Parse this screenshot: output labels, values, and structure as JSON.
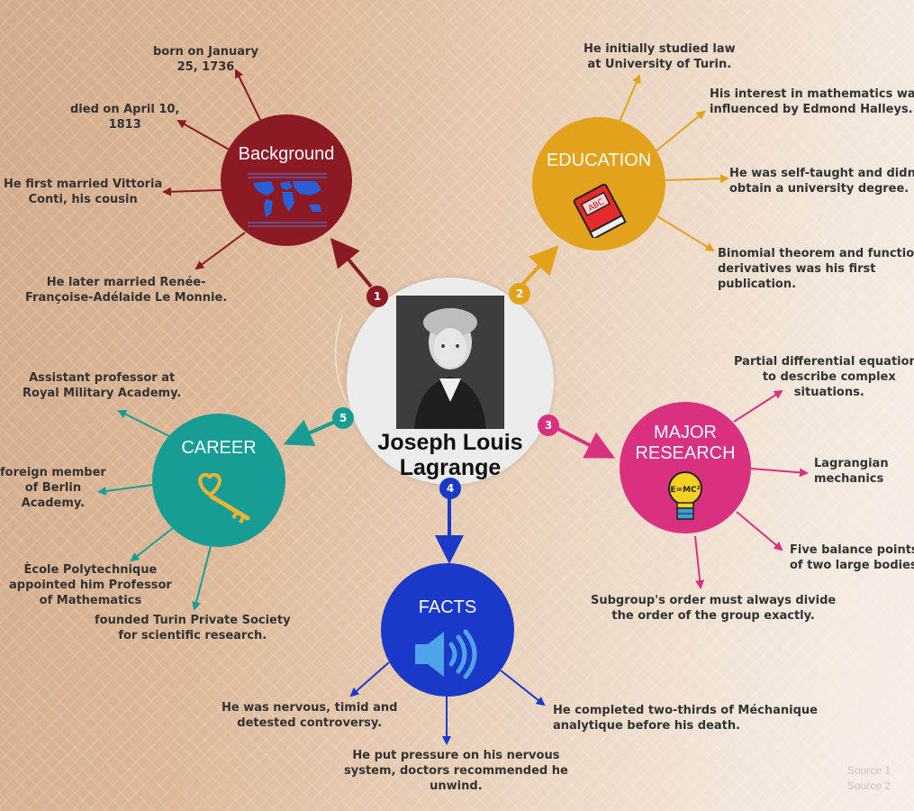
{
  "center": {
    "title_line1": "Joseph Louis",
    "title_line2": "Lagrange",
    "portrait_icon": "portrait-engraving"
  },
  "colors": {
    "background": "#b7cbb2",
    "education": "#e3a21c",
    "research": "#d9307f",
    "facts": "#1a39c8",
    "career": "#179d94"
  },
  "sections": [
    {
      "id": "background",
      "number": "1",
      "title": "Background",
      "icon": "world-map-icon",
      "items": [
        {
          "lines": [
            "born on January",
            "25, 1736"
          ]
        },
        {
          "lines": [
            "died on April 10,",
            "1813"
          ]
        },
        {
          "lines": [
            "He first married Vittoria",
            "Conti, his cousin"
          ]
        },
        {
          "lines": [
            "He later married Renée-",
            "Françoise-Adélaide Le Monnie."
          ]
        }
      ]
    },
    {
      "id": "education",
      "number": "2",
      "title": "EDUCATION",
      "icon": "book-icon",
      "items": [
        {
          "lines": [
            "He initially studied law",
            "at University of Turin."
          ]
        },
        {
          "lines": [
            "His interest in mathematics was",
            "influenced by Edmond Halleys."
          ]
        },
        {
          "lines": [
            "He was self-taught and didn't",
            "obtain a university degree."
          ]
        },
        {
          "lines": [
            "Binomial theorem and function",
            "derivatives was his first",
            "publication."
          ]
        }
      ]
    },
    {
      "id": "research",
      "number": "3",
      "title_line1": "MAJOR",
      "title_line2": "RESEARCH",
      "icon": "lightbulb-icon",
      "items": [
        {
          "lines": [
            "Partial differential equations",
            "to describe complex",
            "situations."
          ]
        },
        {
          "lines": [
            "Lagrangian",
            "mechanics"
          ]
        },
        {
          "lines": [
            "Five balance points",
            "of two large bodies"
          ]
        },
        {
          "lines": [
            "Subgroup's order must always divide",
            "the order of the group exactly."
          ]
        }
      ]
    },
    {
      "id": "facts",
      "number": "4",
      "title": "FACTS",
      "icon": "speaker-icon",
      "items": [
        {
          "lines": [
            "He was nervous, timid and",
            "detested controversy."
          ]
        },
        {
          "lines": [
            "He put pressure on his nervous",
            "system, doctors recommended he",
            "unwind."
          ]
        },
        {
          "lines": [
            "He completed two-thirds of Méchanique",
            "analytique before his death."
          ]
        }
      ]
    },
    {
      "id": "career",
      "number": "5",
      "title": "CAREER",
      "icon": "key-icon",
      "items": [
        {
          "lines": [
            "Assistant professor at",
            "Royal Military Academy."
          ]
        },
        {
          "lines": [
            "foreign member",
            "of Berlin",
            "Academy."
          ]
        },
        {
          "lines": [
            "Ècole Polytechnique",
            "appointed him Professor",
            "of Mathematics"
          ]
        },
        {
          "lines": [
            "founded Turin Private Society",
            "for scientific research."
          ]
        }
      ]
    }
  ],
  "sources": [
    "Source 1",
    "Source 2"
  ]
}
